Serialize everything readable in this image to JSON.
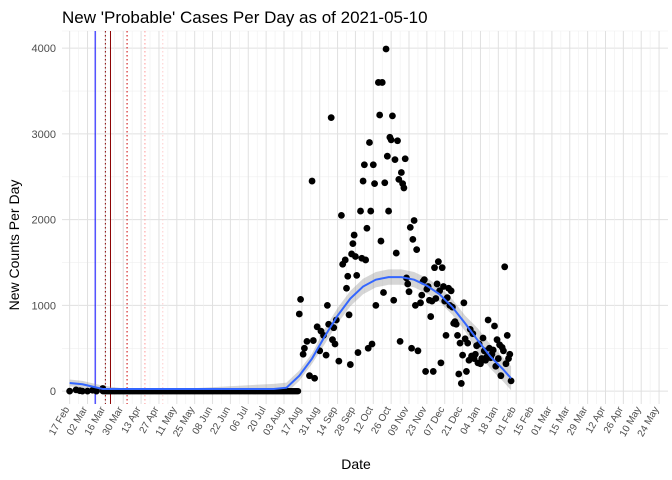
{
  "chart_data": {
    "type": "scatter",
    "title": "New 'Probable' Cases Per Day as of 2021-05-10",
    "xlabel": "Date",
    "ylabel": "New Counts Per Day",
    "ylim": [
      -150,
      4200
    ],
    "y_ticks": [
      0,
      1000,
      2000,
      3000,
      4000
    ],
    "x_start": "2020-02-17",
    "x_end": "2021-05-24",
    "x_tick_labels": [
      "17 Feb",
      "02 Mar",
      "16 Mar",
      "30 Mar",
      "13 Apr",
      "27 Apr",
      "11 May",
      "25 May",
      "08 Jun",
      "22 Jun",
      "06 Jul",
      "20 Jul",
      "03 Aug",
      "17 Aug",
      "31 Aug",
      "14 Sep",
      "28 Sep",
      "12 Oct",
      "26 Oct",
      "09 Nov",
      "23 Nov",
      "07 Dec",
      "21 Dec",
      "04 Jan",
      "18 Jan",
      "01 Feb",
      "15 Feb",
      "01 Mar",
      "15 Mar",
      "29 Mar",
      "12 Apr",
      "26 Apr",
      "10 May",
      "24 May"
    ],
    "vlines": [
      {
        "day": 20,
        "color": "#0000ff",
        "style": "solid"
      },
      {
        "day": 28,
        "color": "#8b0000",
        "style": "dotted"
      },
      {
        "day": 32,
        "color": "#8b0000",
        "style": "solid"
      },
      {
        "day": 45,
        "color": "#cc0000",
        "style": "dotted"
      },
      {
        "day": 59,
        "color": "#ff9999",
        "style": "dotted"
      },
      {
        "day": 73,
        "color": "#ffcccc",
        "style": "dotted"
      }
    ],
    "series": [
      {
        "name": "Daily probable cases",
        "values": [
          [
            0,
            0
          ],
          [
            5,
            15
          ],
          [
            8,
            5
          ],
          [
            10,
            0
          ],
          [
            14,
            0
          ],
          [
            18,
            10
          ],
          [
            21,
            0
          ],
          [
            26,
            30
          ],
          [
            180,
            900
          ],
          [
            181,
            1070
          ],
          [
            183,
            430
          ],
          [
            184,
            500
          ],
          [
            186,
            580
          ],
          [
            188,
            180
          ],
          [
            190,
            2450
          ],
          [
            191,
            590
          ],
          [
            192,
            150
          ],
          [
            194,
            750
          ],
          [
            196,
            470
          ],
          [
            197,
            700
          ],
          [
            199,
            650
          ],
          [
            201,
            420
          ],
          [
            202,
            1000
          ],
          [
            203,
            780
          ],
          [
            205,
            3190
          ],
          [
            206,
            600
          ],
          [
            207,
            740
          ],
          [
            208,
            550
          ],
          [
            209,
            830
          ],
          [
            211,
            350
          ],
          [
            213,
            2050
          ],
          [
            214,
            1480
          ],
          [
            216,
            1530
          ],
          [
            217,
            1200
          ],
          [
            218,
            1340
          ],
          [
            219,
            890
          ],
          [
            220,
            310
          ],
          [
            221,
            1600
          ],
          [
            222,
            1720
          ],
          [
            223,
            1820
          ],
          [
            224,
            1570
          ],
          [
            225,
            1350
          ],
          [
            226,
            450
          ],
          [
            228,
            2100
          ],
          [
            229,
            1550
          ],
          [
            230,
            2450
          ],
          [
            231,
            2640
          ],
          [
            232,
            1530
          ],
          [
            233,
            1900
          ],
          [
            234,
            500
          ],
          [
            235,
            2900
          ],
          [
            236,
            2100
          ],
          [
            237,
            550
          ],
          [
            238,
            2640
          ],
          [
            239,
            2420
          ],
          [
            240,
            1000
          ],
          [
            242,
            3600
          ],
          [
            243,
            3220
          ],
          [
            244,
            1750
          ],
          [
            245,
            3600
          ],
          [
            246,
            1150
          ],
          [
            247,
            2430
          ],
          [
            248,
            3990
          ],
          [
            249,
            2740
          ],
          [
            250,
            2100
          ],
          [
            251,
            2960
          ],
          [
            252,
            2930
          ],
          [
            253,
            3210
          ],
          [
            254,
            1060
          ],
          [
            255,
            2700
          ],
          [
            256,
            1610
          ],
          [
            257,
            2920
          ],
          [
            258,
            2470
          ],
          [
            259,
            580
          ],
          [
            260,
            2550
          ],
          [
            261,
            2420
          ],
          [
            262,
            2370
          ],
          [
            263,
            2710
          ],
          [
            264,
            1320
          ],
          [
            265,
            1250
          ],
          [
            266,
            1160
          ],
          [
            267,
            1910
          ],
          [
            268,
            500
          ],
          [
            269,
            1770
          ],
          [
            270,
            1990
          ],
          [
            271,
            1000
          ],
          [
            272,
            1650
          ],
          [
            273,
            470
          ],
          [
            275,
            1030
          ],
          [
            276,
            1120
          ],
          [
            277,
            1280
          ],
          [
            278,
            1300
          ],
          [
            279,
            230
          ],
          [
            280,
            1190
          ],
          [
            281,
            1220
          ],
          [
            282,
            1060
          ],
          [
            283,
            870
          ],
          [
            284,
            1050
          ],
          [
            285,
            230
          ],
          [
            286,
            1440
          ],
          [
            287,
            1080
          ],
          [
            288,
            1250
          ],
          [
            289,
            1510
          ],
          [
            290,
            1170
          ],
          [
            291,
            330
          ],
          [
            292,
            1440
          ],
          [
            293,
            1220
          ],
          [
            294,
            1050
          ],
          [
            295,
            650
          ],
          [
            296,
            1090
          ],
          [
            297,
            1200
          ],
          [
            298,
            1000
          ],
          [
            299,
            1170
          ],
          [
            300,
            980
          ],
          [
            301,
            790
          ],
          [
            302,
            810
          ],
          [
            303,
            780
          ],
          [
            304,
            650
          ],
          [
            305,
            200
          ],
          [
            306,
            560
          ],
          [
            307,
            90
          ],
          [
            308,
            420
          ],
          [
            309,
            1030
          ],
          [
            310,
            610
          ],
          [
            311,
            230
          ],
          [
            312,
            560
          ],
          [
            313,
            360
          ],
          [
            314,
            720
          ],
          [
            315,
            410
          ],
          [
            316,
            670
          ],
          [
            317,
            380
          ],
          [
            318,
            430
          ],
          [
            319,
            530
          ],
          [
            320,
            330
          ],
          [
            321,
            550
          ],
          [
            322,
            320
          ],
          [
            323,
            380
          ],
          [
            324,
            620
          ],
          [
            325,
            470
          ],
          [
            326,
            360
          ],
          [
            327,
            400
          ],
          [
            328,
            830
          ],
          [
            329,
            500
          ],
          [
            330,
            390
          ],
          [
            331,
            430
          ],
          [
            332,
            480
          ],
          [
            333,
            760
          ],
          [
            334,
            290
          ],
          [
            335,
            600
          ],
          [
            336,
            380
          ],
          [
            337,
            540
          ],
          [
            338,
            180
          ],
          [
            339,
            510
          ],
          [
            340,
            470
          ],
          [
            341,
            1450
          ],
          [
            342,
            320
          ],
          [
            343,
            650
          ],
          [
            344,
            380
          ],
          [
            345,
            430
          ],
          [
            346,
            120
          ]
        ]
      }
    ],
    "smooth": [
      [
        0,
        95
      ],
      [
        10,
        80
      ],
      [
        20,
        45
      ],
      [
        26,
        25
      ],
      [
        40,
        25
      ],
      [
        100,
        25
      ],
      [
        160,
        25
      ],
      [
        170,
        40
      ],
      [
        180,
        180
      ],
      [
        190,
        380
      ],
      [
        200,
        640
      ],
      [
        210,
        880
      ],
      [
        220,
        1080
      ],
      [
        230,
        1220
      ],
      [
        240,
        1300
      ],
      [
        250,
        1330
      ],
      [
        260,
        1330
      ],
      [
        270,
        1300
      ],
      [
        280,
        1230
      ],
      [
        290,
        1130
      ],
      [
        300,
        980
      ],
      [
        310,
        790
      ],
      [
        320,
        590
      ],
      [
        330,
        400
      ],
      [
        340,
        250
      ],
      [
        346,
        150
      ]
    ]
  }
}
